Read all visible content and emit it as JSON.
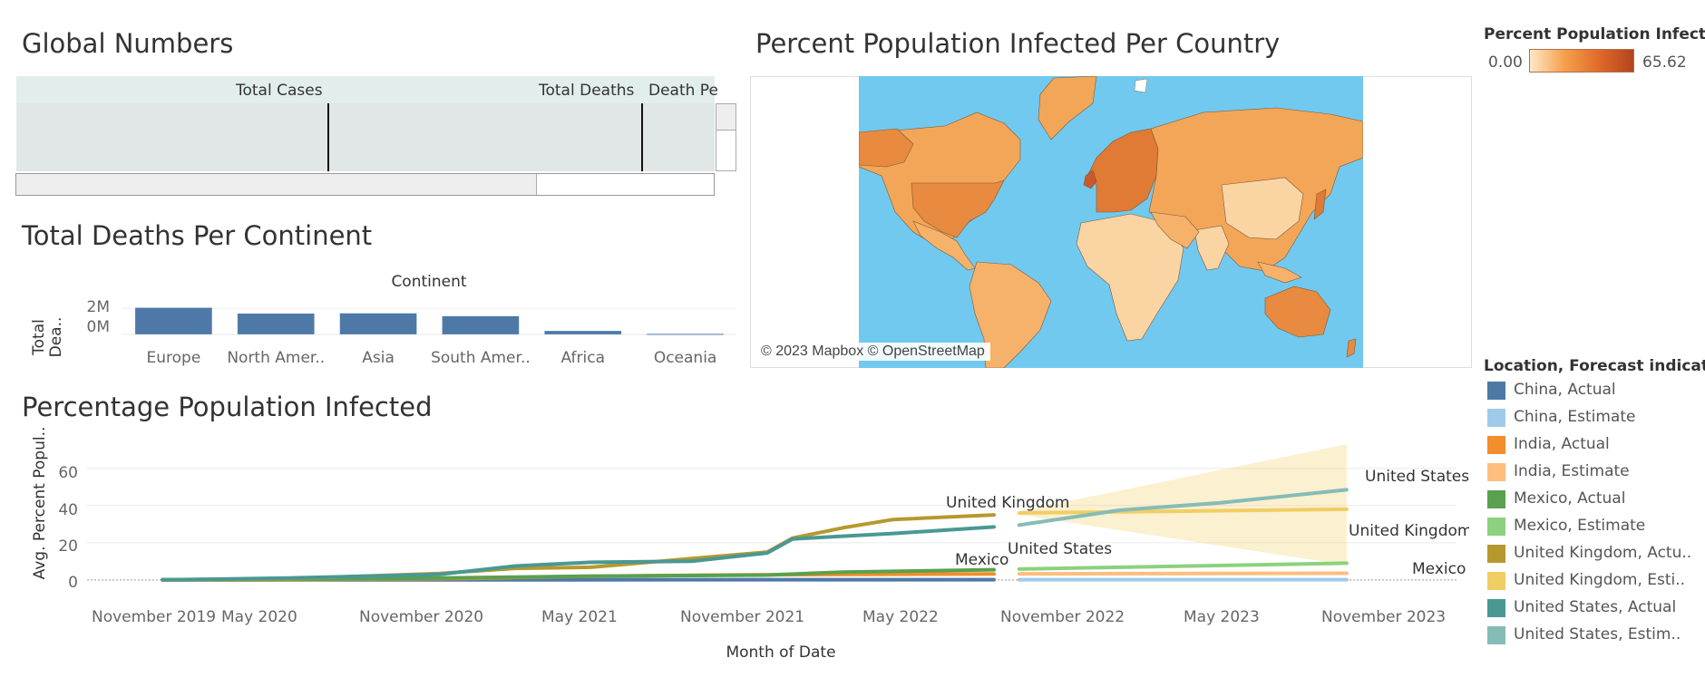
{
  "global_numbers": {
    "title": "Global Numbers",
    "columns": [
      "Total Cases",
      "Total Deaths",
      "Death Pe"
    ]
  },
  "continent_chart": {
    "title": "Total Deaths Per Continent",
    "column_header": "Continent",
    "y_axis_label": [
      "Total",
      "Dea.."
    ],
    "y_ticks": [
      "2M",
      "0M"
    ]
  },
  "map": {
    "title": "Percent Population Infected Per Country",
    "credit": "© 2023 Mapbox © OpenStreetMap"
  },
  "color_legend": {
    "title": "Percent Population Infect..",
    "min": "0.00",
    "max": "65.62",
    "colors": [
      "#fde8c8",
      "#f5a04c",
      "#e06a2a",
      "#b3441d"
    ]
  },
  "line_chart": {
    "title": "Percentage Population Infected",
    "y_axis_label": "Avg. Percent Popul..",
    "x_axis_label": "Month of Date",
    "y_ticks": [
      "60",
      "40",
      "20",
      "0"
    ],
    "x_ticks": [
      "November 2019",
      "May 2020",
      "November 2020",
      "May 2021",
      "November 2021",
      "May 2022",
      "November 2022",
      "May 2023",
      "November 2023"
    ],
    "annotations": [
      "United Kingdom",
      "United States",
      "Mexico",
      "United States",
      "United Kingdom",
      "Mexico"
    ]
  },
  "series_legend": {
    "title": "Location, Forecast indicat..",
    "items": [
      {
        "label": "China, Actual",
        "color": "#4e79a7"
      },
      {
        "label": "China, Estimate",
        "color": "#a0cbe8"
      },
      {
        "label": "India, Actual",
        "color": "#f28e2b"
      },
      {
        "label": "India, Estimate",
        "color": "#ffbe7d"
      },
      {
        "label": "Mexico, Actual",
        "color": "#59a14f"
      },
      {
        "label": "Mexico, Estimate",
        "color": "#8cd17d"
      },
      {
        "label": "United Kingdom, Actu..",
        "color": "#b6992d"
      },
      {
        "label": "United Kingdom, Esti..",
        "color": "#f1ce63"
      },
      {
        "label": "United States, Actual",
        "color": "#499894"
      },
      {
        "label": "United States, Estim..",
        "color": "#86bcb6"
      }
    ]
  },
  "chart_data": [
    {
      "type": "bar",
      "title": "Total Deaths Per Continent",
      "categories": [
        "Europe",
        "North Amer..",
        "Asia",
        "South Amer..",
        "Africa",
        "Oceania"
      ],
      "values": [
        2050000,
        1600000,
        1620000,
        1400000,
        260000,
        30000
      ],
      "xlabel": "Continent",
      "ylabel": "Total Dea..",
      "ylim": [
        -500000,
        3000000
      ],
      "color": "#4e79a7",
      "grid": true
    },
    {
      "type": "line",
      "title": "Percentage Population Infected",
      "xlabel": "Month of Date",
      "ylabel": "Avg. Percent Popul..",
      "ylim": [
        -3,
        75
      ],
      "xlim": [
        "2019-10",
        "2024-04"
      ],
      "grid": true,
      "series": [
        {
          "name": "China, Actual",
          "color": "#4e79a7",
          "x": [
            "2020-01",
            "2022-10"
          ],
          "y": [
            0,
            0.1
          ]
        },
        {
          "name": "China, Estimate",
          "color": "#a0cbe8",
          "x": [
            "2022-11",
            "2023-12"
          ],
          "y": [
            0.1,
            0.1
          ]
        },
        {
          "name": "India, Actual",
          "color": "#f28e2b",
          "x": [
            "2020-01",
            "2020-06",
            "2021-01",
            "2021-06",
            "2022-01",
            "2022-10"
          ],
          "y": [
            0,
            0.1,
            0.8,
            2,
            2.8,
            3.2
          ]
        },
        {
          "name": "India, Estimate",
          "color": "#ffbe7d",
          "x": [
            "2022-11",
            "2023-12"
          ],
          "y": [
            3.3,
            3.6
          ]
        },
        {
          "name": "Mexico, Actual",
          "color": "#59a14f",
          "x": [
            "2020-01",
            "2020-06",
            "2020-12",
            "2021-06",
            "2022-01",
            "2022-04",
            "2022-10"
          ],
          "y": [
            0,
            0.2,
            1.0,
            2.0,
            2.6,
            4.2,
            5.5
          ]
        },
        {
          "name": "Mexico, Estimate",
          "color": "#8cd17d",
          "x": [
            "2022-11",
            "2023-12"
          ],
          "y": [
            5.8,
            9.0
          ]
        },
        {
          "name": "United Kingdom, Actual",
          "color": "#b6992d",
          "x": [
            "2020-01",
            "2020-06",
            "2020-12",
            "2021-03",
            "2021-06",
            "2021-10",
            "2022-01",
            "2022-02",
            "2022-04",
            "2022-06",
            "2022-10"
          ],
          "y": [
            0,
            0.6,
            3.5,
            6.2,
            6.8,
            11.5,
            15,
            22.5,
            28,
            32.5,
            35
          ]
        },
        {
          "name": "United Kingdom, Estimate",
          "color": "#f1ce63",
          "x": [
            "2022-11",
            "2023-12"
          ],
          "y": [
            36,
            38
          ]
        },
        {
          "name": "United States, Actual",
          "color": "#499894",
          "x": [
            "2020-01",
            "2020-06",
            "2020-12",
            "2021-03",
            "2021-06",
            "2021-10",
            "2022-01",
            "2022-02",
            "2022-04",
            "2022-06",
            "2022-10"
          ],
          "y": [
            0,
            1.0,
            3.0,
            7.5,
            9.5,
            10,
            14.5,
            22,
            23.5,
            25,
            28.5
          ]
        },
        {
          "name": "United States, Estimate",
          "color": "#86bcb6",
          "x": [
            "2022-11",
            "2023-03",
            "2023-07",
            "2023-12"
          ],
          "y": [
            29.5,
            37.5,
            41.5,
            48.5
          ]
        }
      ],
      "forecast_band": {
        "x": [
          "2022-11",
          "2023-12"
        ],
        "upper": [
          37,
          73
        ],
        "lower": [
          35,
          8
        ]
      }
    }
  ]
}
